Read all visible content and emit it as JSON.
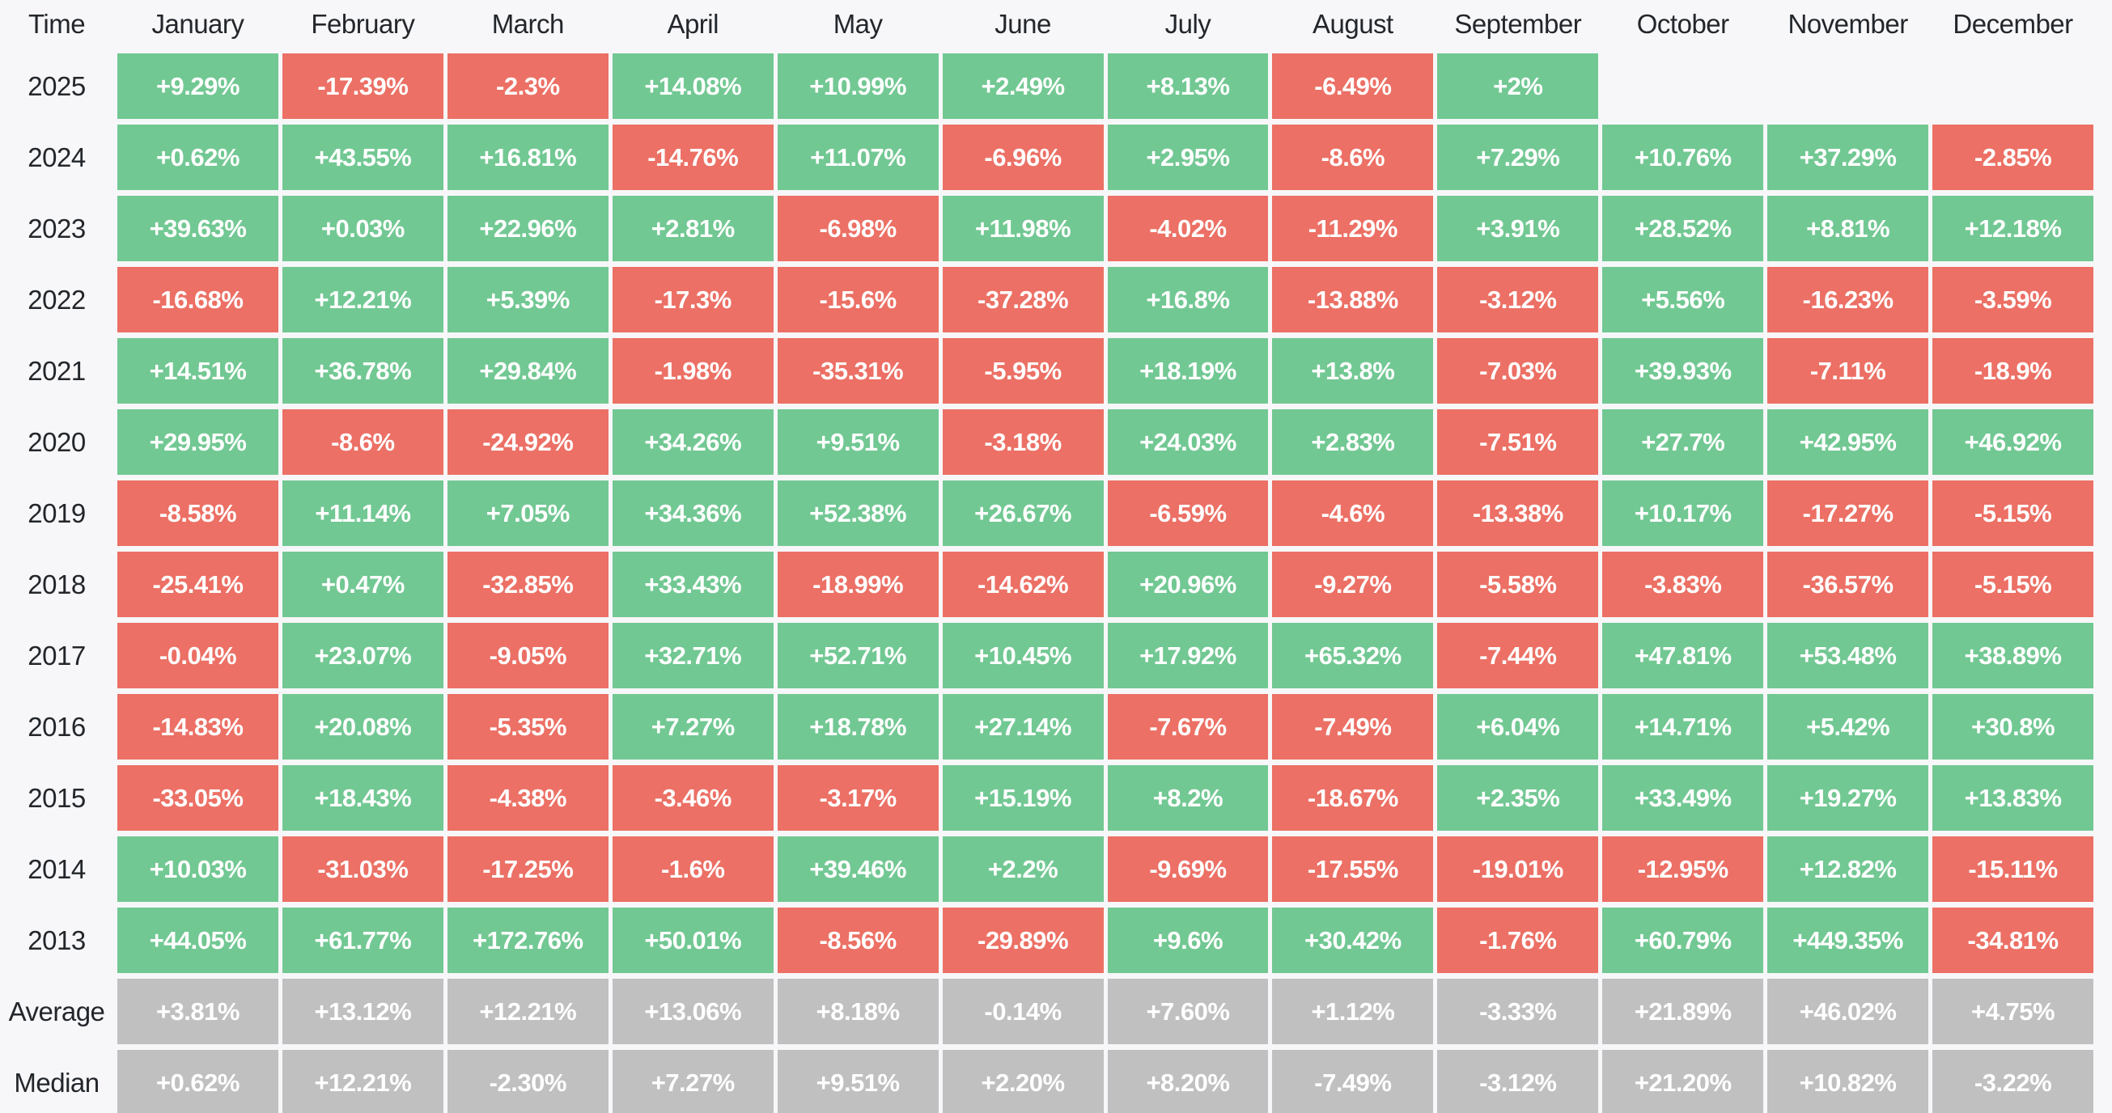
{
  "palette": {
    "positive": "#72c893",
    "negative": "#ec7065",
    "summary": "#c1c0c1",
    "background": "#f7f7f9",
    "label_text": "#23262b",
    "cell_text": "#ffffff"
  },
  "table": {
    "corner_label": "Time",
    "months": [
      "January",
      "February",
      "March",
      "April",
      "May",
      "June",
      "July",
      "August",
      "September",
      "October",
      "November",
      "December"
    ],
    "rows": [
      {
        "label": "2025",
        "type": "year",
        "values": [
          "+9.29%",
          "-17.39%",
          "-2.3%",
          "+14.08%",
          "+10.99%",
          "+2.49%",
          "+8.13%",
          "-6.49%",
          "+2%",
          null,
          null,
          null
        ]
      },
      {
        "label": "2024",
        "type": "year",
        "values": [
          "+0.62%",
          "+43.55%",
          "+16.81%",
          "-14.76%",
          "+11.07%",
          "-6.96%",
          "+2.95%",
          "-8.6%",
          "+7.29%",
          "+10.76%",
          "+37.29%",
          "-2.85%"
        ]
      },
      {
        "label": "2023",
        "type": "year",
        "values": [
          "+39.63%",
          "+0.03%",
          "+22.96%",
          "+2.81%",
          "-6.98%",
          "+11.98%",
          "-4.02%",
          "-11.29%",
          "+3.91%",
          "+28.52%",
          "+8.81%",
          "+12.18%"
        ]
      },
      {
        "label": "2022",
        "type": "year",
        "values": [
          "-16.68%",
          "+12.21%",
          "+5.39%",
          "-17.3%",
          "-15.6%",
          "-37.28%",
          "+16.8%",
          "-13.88%",
          "-3.12%",
          "+5.56%",
          "-16.23%",
          "-3.59%"
        ]
      },
      {
        "label": "2021",
        "type": "year",
        "values": [
          "+14.51%",
          "+36.78%",
          "+29.84%",
          "-1.98%",
          "-35.31%",
          "-5.95%",
          "+18.19%",
          "+13.8%",
          "-7.03%",
          "+39.93%",
          "-7.11%",
          "-18.9%"
        ]
      },
      {
        "label": "2020",
        "type": "year",
        "values": [
          "+29.95%",
          "-8.6%",
          "-24.92%",
          "+34.26%",
          "+9.51%",
          "-3.18%",
          "+24.03%",
          "+2.83%",
          "-7.51%",
          "+27.7%",
          "+42.95%",
          "+46.92%"
        ]
      },
      {
        "label": "2019",
        "type": "year",
        "values": [
          "-8.58%",
          "+11.14%",
          "+7.05%",
          "+34.36%",
          "+52.38%",
          "+26.67%",
          "-6.59%",
          "-4.6%",
          "-13.38%",
          "+10.17%",
          "-17.27%",
          "-5.15%"
        ]
      },
      {
        "label": "2018",
        "type": "year",
        "values": [
          "-25.41%",
          "+0.47%",
          "-32.85%",
          "+33.43%",
          "-18.99%",
          "-14.62%",
          "+20.96%",
          "-9.27%",
          "-5.58%",
          "-3.83%",
          "-36.57%",
          "-5.15%"
        ]
      },
      {
        "label": "2017",
        "type": "year",
        "values": [
          "-0.04%",
          "+23.07%",
          "-9.05%",
          "+32.71%",
          "+52.71%",
          "+10.45%",
          "+17.92%",
          "+65.32%",
          "-7.44%",
          "+47.81%",
          "+53.48%",
          "+38.89%"
        ]
      },
      {
        "label": "2016",
        "type": "year",
        "values": [
          "-14.83%",
          "+20.08%",
          "-5.35%",
          "+7.27%",
          "+18.78%",
          "+27.14%",
          "-7.67%",
          "-7.49%",
          "+6.04%",
          "+14.71%",
          "+5.42%",
          "+30.8%"
        ]
      },
      {
        "label": "2015",
        "type": "year",
        "values": [
          "-33.05%",
          "+18.43%",
          "-4.38%",
          "-3.46%",
          "-3.17%",
          "+15.19%",
          "+8.2%",
          "-18.67%",
          "+2.35%",
          "+33.49%",
          "+19.27%",
          "+13.83%"
        ]
      },
      {
        "label": "2014",
        "type": "year",
        "values": [
          "+10.03%",
          "-31.03%",
          "-17.25%",
          "-1.6%",
          "+39.46%",
          "+2.2%",
          "-9.69%",
          "-17.55%",
          "-19.01%",
          "-12.95%",
          "+12.82%",
          "-15.11%"
        ]
      },
      {
        "label": "2013",
        "type": "year",
        "values": [
          "+44.05%",
          "+61.77%",
          "+172.76%",
          "+50.01%",
          "-8.56%",
          "-29.89%",
          "+9.6%",
          "+30.42%",
          "-1.76%",
          "+60.79%",
          "+449.35%",
          "-34.81%"
        ]
      },
      {
        "label": "Average",
        "type": "summary",
        "values": [
          "+3.81%",
          "+13.12%",
          "+12.21%",
          "+13.06%",
          "+8.18%",
          "-0.14%",
          "+7.60%",
          "+1.12%",
          "-3.33%",
          "+21.89%",
          "+46.02%",
          "+4.75%"
        ]
      },
      {
        "label": "Median",
        "type": "summary",
        "values": [
          "+0.62%",
          "+12.21%",
          "-2.30%",
          "+7.27%",
          "+9.51%",
          "+2.20%",
          "+8.20%",
          "-7.49%",
          "-3.12%",
          "+21.20%",
          "+10.82%",
          "-3.22%"
        ]
      }
    ]
  },
  "chart_data": {
    "type": "heatmap",
    "xlabel": "Time",
    "x": [
      "January",
      "February",
      "March",
      "April",
      "May",
      "June",
      "July",
      "August",
      "September",
      "October",
      "November",
      "December"
    ],
    "y": [
      "2025",
      "2024",
      "2023",
      "2022",
      "2021",
      "2020",
      "2019",
      "2018",
      "2017",
      "2016",
      "2015",
      "2014",
      "2013",
      "Average",
      "Median"
    ],
    "unit": "%",
    "values": [
      [
        9.29,
        -17.39,
        -2.3,
        14.08,
        10.99,
        2.49,
        8.13,
        -6.49,
        2,
        null,
        null,
        null
      ],
      [
        0.62,
        43.55,
        16.81,
        -14.76,
        11.07,
        -6.96,
        2.95,
        -8.6,
        7.29,
        10.76,
        37.29,
        -2.85
      ],
      [
        39.63,
        0.03,
        22.96,
        2.81,
        -6.98,
        11.98,
        -4.02,
        -11.29,
        3.91,
        28.52,
        8.81,
        12.18
      ],
      [
        -16.68,
        12.21,
        5.39,
        -17.3,
        -15.6,
        -37.28,
        16.8,
        -13.88,
        -3.12,
        5.56,
        -16.23,
        -3.59
      ],
      [
        14.51,
        36.78,
        29.84,
        -1.98,
        -35.31,
        -5.95,
        18.19,
        13.8,
        -7.03,
        39.93,
        -7.11,
        -18.9
      ],
      [
        29.95,
        -8.6,
        -24.92,
        34.26,
        9.51,
        -3.18,
        24.03,
        2.83,
        -7.51,
        27.7,
        42.95,
        46.92
      ],
      [
        -8.58,
        11.14,
        7.05,
        34.36,
        52.38,
        26.67,
        -6.59,
        -4.6,
        -13.38,
        10.17,
        -17.27,
        -5.15
      ],
      [
        -25.41,
        0.47,
        -32.85,
        33.43,
        -18.99,
        -14.62,
        20.96,
        -9.27,
        -5.58,
        -3.83,
        -36.57,
        -5.15
      ],
      [
        -0.04,
        23.07,
        -9.05,
        32.71,
        52.71,
        10.45,
        17.92,
        65.32,
        -7.44,
        47.81,
        53.48,
        38.89
      ],
      [
        -14.83,
        20.08,
        -5.35,
        7.27,
        18.78,
        27.14,
        -7.67,
        -7.49,
        6.04,
        14.71,
        5.42,
        30.8
      ],
      [
        -33.05,
        18.43,
        -4.38,
        -3.46,
        -3.17,
        15.19,
        8.2,
        -18.67,
        2.35,
        33.49,
        19.27,
        13.83
      ],
      [
        10.03,
        -31.03,
        -17.25,
        -1.6,
        39.46,
        2.2,
        -9.69,
        -17.55,
        -19.01,
        -12.95,
        12.82,
        -15.11
      ],
      [
        44.05,
        61.77,
        172.76,
        50.01,
        -8.56,
        -29.89,
        9.6,
        30.42,
        -1.76,
        60.79,
        449.35,
        -34.81
      ],
      [
        3.81,
        13.12,
        12.21,
        13.06,
        8.18,
        -0.14,
        7.6,
        1.12,
        -3.33,
        21.89,
        46.02,
        4.75
      ],
      [
        0.62,
        12.21,
        -2.3,
        7.27,
        9.51,
        2.2,
        8.2,
        -7.49,
        -3.12,
        21.2,
        10.82,
        -3.22
      ]
    ],
    "color_rule": "positive=green, negative=red, summary-rows=gray",
    "grid": false,
    "legend": false
  }
}
